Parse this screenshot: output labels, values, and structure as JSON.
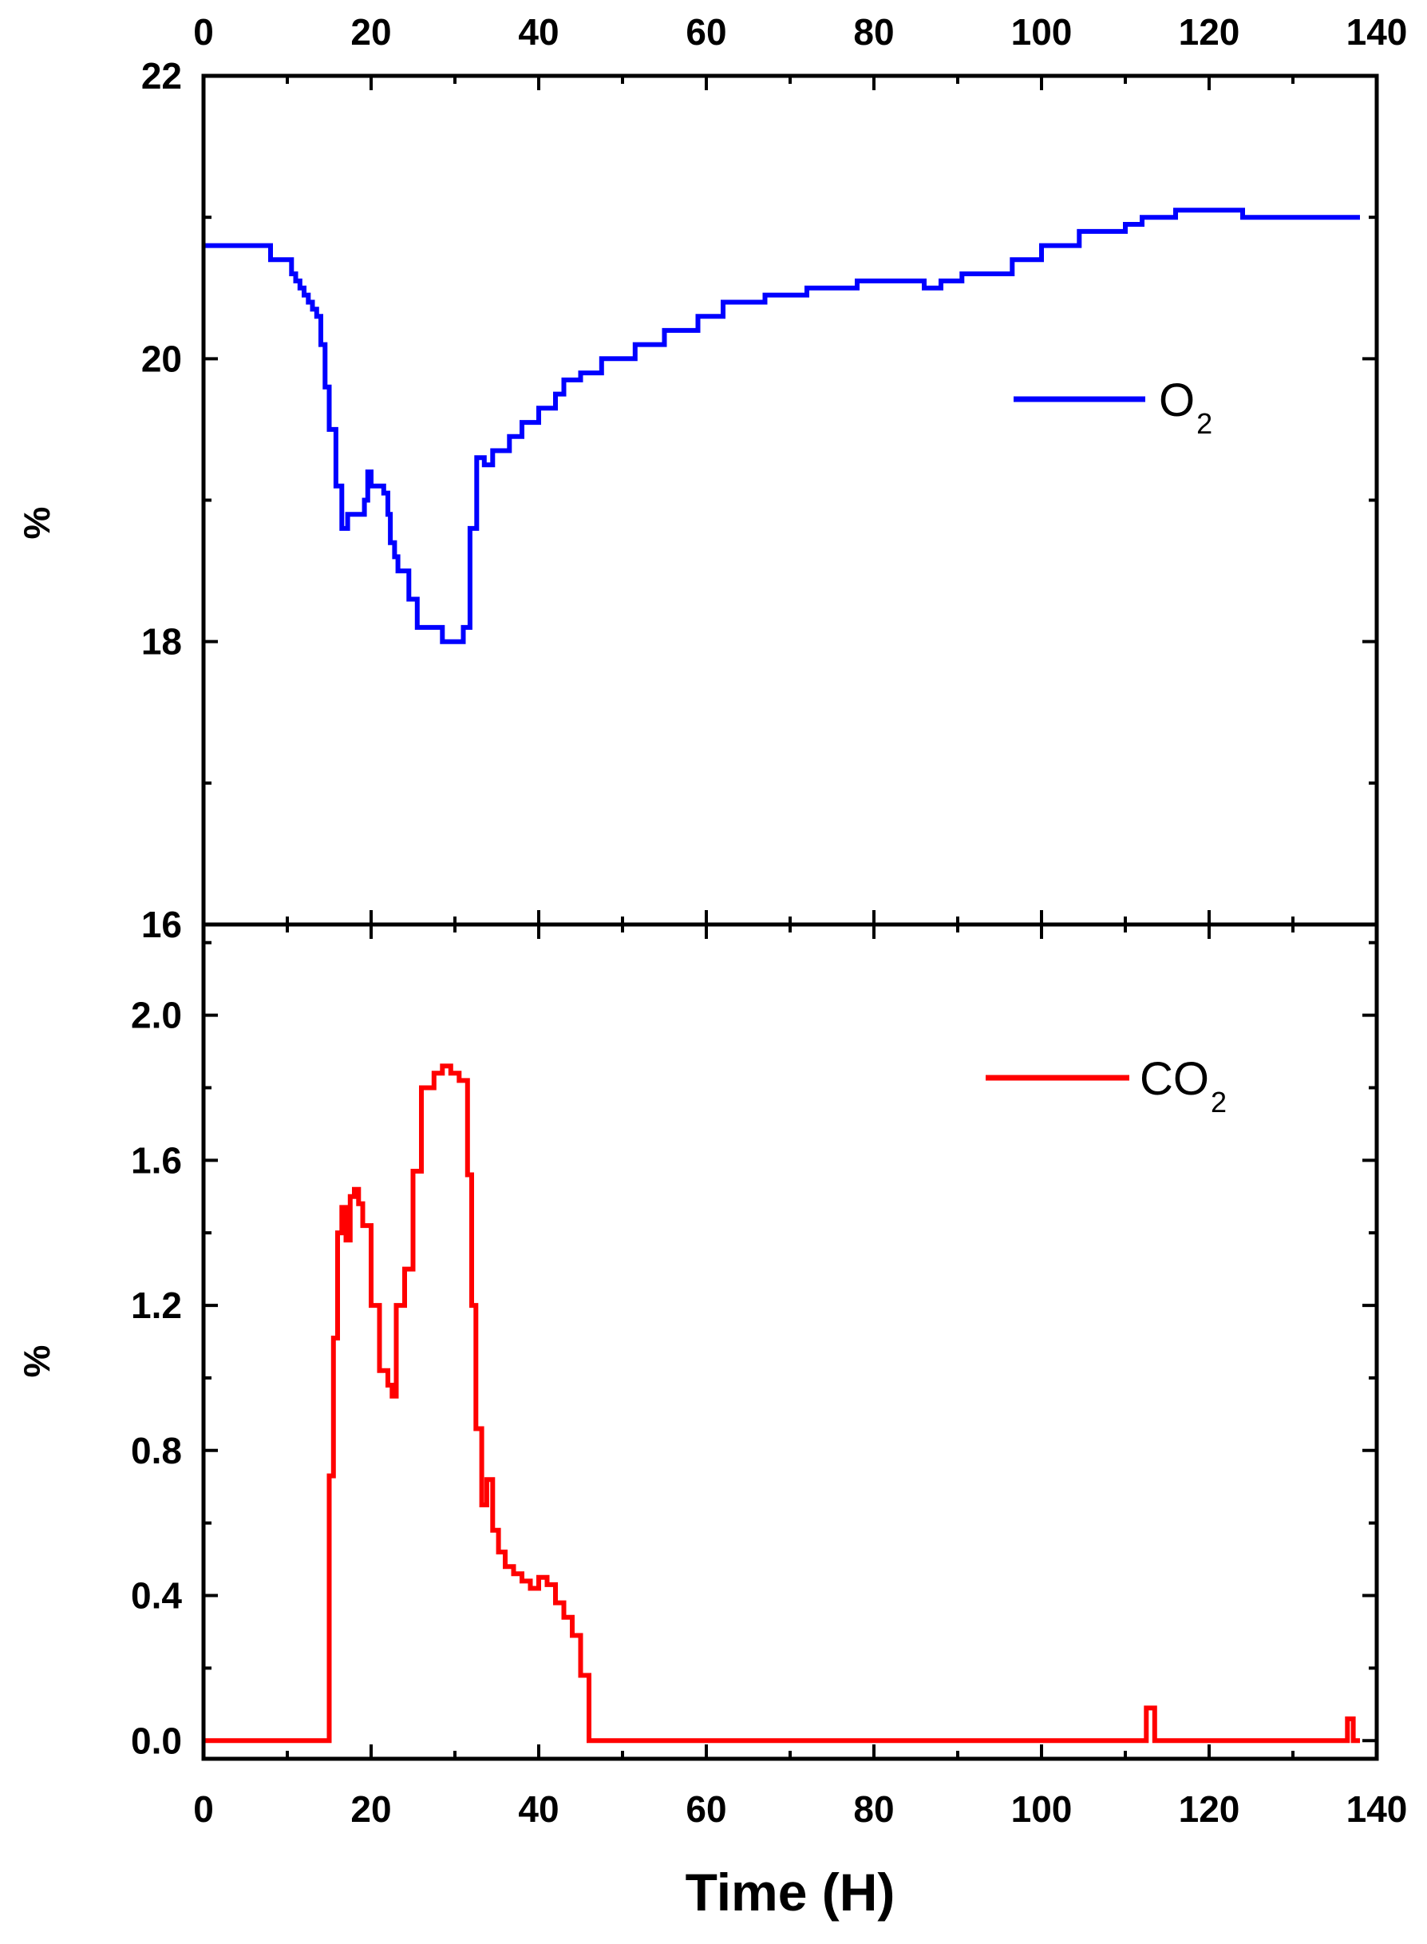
{
  "chart_data": {
    "type": "line",
    "xlabel": "Time (H)",
    "xlim": [
      0,
      140
    ],
    "xticks": [
      0,
      20,
      40,
      60,
      80,
      100,
      120,
      140
    ],
    "shared_x_axis": true,
    "x_tick_labels_on_top_and_bottom": true,
    "panels": [
      {
        "panel": "top",
        "ylabel": "%",
        "ylim": [
          16,
          22
        ],
        "yticks": [
          16,
          18,
          20,
          22
        ],
        "ytick_labels": [
          "16",
          "18",
          "20",
          "22"
        ],
        "grid": false,
        "legend_position": "right",
        "series": [
          {
            "legend_main": "O",
            "legend_sub": "2",
            "color": "#0000ff",
            "x": [
              0,
              8,
              8,
              10.5,
              10.5,
              11,
              11,
              11.5,
              11.5,
              12,
              12,
              12.5,
              12.5,
              13,
              13,
              13.5,
              13.5,
              14,
              14,
              14.5,
              14.5,
              15,
              15,
              15.8,
              15.8,
              16.5,
              16.5,
              17.2,
              17.2,
              19.2,
              19.2,
              19.6,
              19.6,
              20,
              20,
              21.5,
              21.5,
              22,
              22,
              22.3,
              22.3,
              22.8,
              22.8,
              23.2,
              23.2,
              24.5,
              24.5,
              25.5,
              25.5,
              28.5,
              28.5,
              31,
              31,
              31.8,
              31.8,
              32.6,
              32.6,
              33.5,
              33.5,
              34.5,
              34.5,
              36.5,
              36.5,
              38,
              38,
              40,
              40,
              42,
              42,
              43,
              43,
              45,
              45,
              47.5,
              47.5,
              51.5,
              51.5,
              55,
              55,
              59,
              59,
              62,
              62,
              67,
              67,
              72,
              72,
              78,
              78,
              86,
              86,
              88,
              88,
              90.5,
              90.5,
              96.5,
              96.5,
              100,
              100,
              104.5,
              104.5,
              110,
              110,
              112,
              112,
              116,
              116,
              124,
              124,
              138
            ],
            "y": [
              20.8,
              20.8,
              20.7,
              20.7,
              20.6,
              20.6,
              20.55,
              20.55,
              20.5,
              20.5,
              20.45,
              20.45,
              20.4,
              20.4,
              20.35,
              20.35,
              20.3,
              20.3,
              20.1,
              20.1,
              19.8,
              19.8,
              19.5,
              19.5,
              19.1,
              19.1,
              18.8,
              18.8,
              18.9,
              18.9,
              19.0,
              19.0,
              19.2,
              19.2,
              19.1,
              19.1,
              19.05,
              19.05,
              18.9,
              18.9,
              18.7,
              18.7,
              18.6,
              18.6,
              18.5,
              18.5,
              18.3,
              18.3,
              18.1,
              18.1,
              18.0,
              18.0,
              18.1,
              18.1,
              18.8,
              18.8,
              19.3,
              19.3,
              19.25,
              19.25,
              19.35,
              19.35,
              19.45,
              19.45,
              19.55,
              19.55,
              19.65,
              19.65,
              19.75,
              19.75,
              19.85,
              19.85,
              19.9,
              19.9,
              20.0,
              20.0,
              20.1,
              20.1,
              20.2,
              20.2,
              20.3,
              20.3,
              20.4,
              20.4,
              20.45,
              20.45,
              20.5,
              20.5,
              20.55,
              20.55,
              20.5,
              20.5,
              20.55,
              20.55,
              20.6,
              20.6,
              20.7,
              20.7,
              20.8,
              20.8,
              20.9,
              20.9,
              20.95,
              20.95,
              21.0,
              21.0,
              21.05,
              21.05,
              21.0,
              21.0
            ]
          }
        ]
      },
      {
        "panel": "bottom",
        "ylabel": "%",
        "ylim": [
          -0.05,
          2.25
        ],
        "yticks": [
          0.0,
          0.4,
          0.8,
          1.2,
          1.6,
          2.0
        ],
        "ytick_labels": [
          "0.0",
          "0.4",
          "0.8",
          "1.2",
          "1.6",
          "2.0"
        ],
        "grid": false,
        "legend_position": "right",
        "series": [
          {
            "legend_main": "CO",
            "legend_sub": "2",
            "color": "#ff0000",
            "x": [
              0,
              15,
              15,
              15.5,
              15.5,
              16,
              16,
              16.5,
              16.5,
              17,
              17,
              17.5,
              17.5,
              18,
              18,
              18.5,
              18.5,
              19,
              19,
              20,
              20,
              21,
              21,
              22,
              22,
              22.5,
              22.5,
              23,
              23,
              24,
              24,
              25,
              25,
              26,
              26,
              27.5,
              27.5,
              28.5,
              28.5,
              29.5,
              29.5,
              30.5,
              30.5,
              31.5,
              31.5,
              32,
              32,
              32.5,
              32.5,
              33.2,
              33.2,
              33.8,
              33.8,
              34.5,
              34.5,
              35.2,
              35.2,
              36,
              36,
              37,
              37,
              38,
              38,
              39,
              39,
              40,
              40,
              41,
              41,
              42,
              42,
              43,
              43,
              44,
              44,
              45,
              45,
              46,
              46,
              112.5,
              112.5,
              113.5,
              113.5,
              136.5,
              136.5,
              137.2,
              137.2,
              138
            ],
            "y": [
              0.0,
              0.0,
              0.73,
              0.73,
              1.11,
              1.11,
              1.4,
              1.4,
              1.47,
              1.47,
              1.38,
              1.38,
              1.5,
              1.5,
              1.52,
              1.52,
              1.48,
              1.48,
              1.42,
              1.42,
              1.2,
              1.2,
              1.02,
              1.02,
              0.98,
              0.98,
              0.95,
              0.95,
              1.2,
              1.2,
              1.3,
              1.3,
              1.57,
              1.57,
              1.8,
              1.8,
              1.84,
              1.84,
              1.86,
              1.86,
              1.84,
              1.84,
              1.82,
              1.82,
              1.56,
              1.56,
              1.2,
              1.2,
              0.86,
              0.86,
              0.65,
              0.65,
              0.72,
              0.72,
              0.58,
              0.58,
              0.52,
              0.52,
              0.48,
              0.48,
              0.46,
              0.46,
              0.44,
              0.44,
              0.42,
              0.42,
              0.45,
              0.45,
              0.43,
              0.43,
              0.38,
              0.38,
              0.34,
              0.34,
              0.29,
              0.29,
              0.18,
              0.18,
              0.0,
              0.0,
              0.09,
              0.09,
              0.0,
              0.0,
              0.06,
              0.06,
              0.0,
              0.0
            ]
          }
        ]
      }
    ]
  }
}
